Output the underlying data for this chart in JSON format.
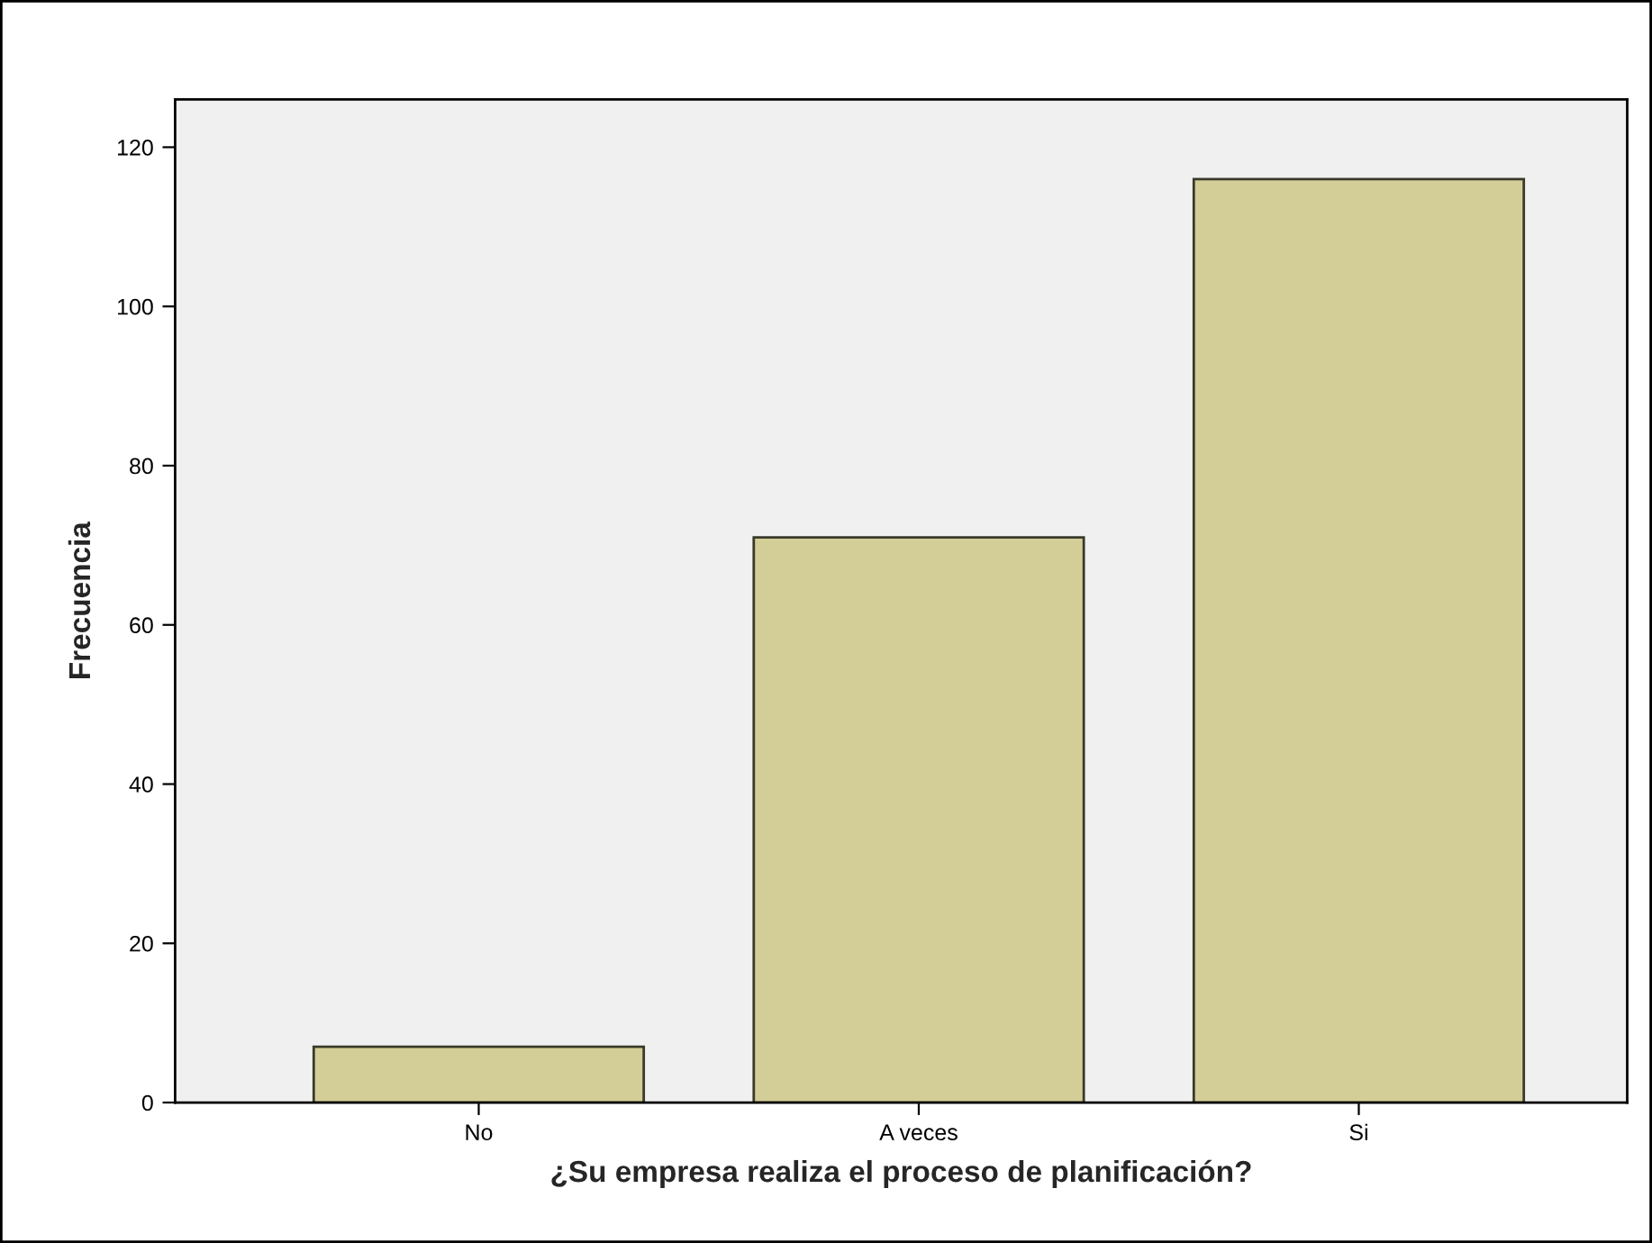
{
  "chart_data": {
    "type": "bar",
    "xlabel": "¿Su empresa realiza el proceso de planificación?",
    "ylabel": "Frecuencia",
    "categories": [
      "No",
      "A veces",
      "Si"
    ],
    "values": [
      7,
      71,
      116
    ],
    "color": "#d3ce97",
    "ylim": [
      0,
      126
    ],
    "yticks": [
      0,
      20,
      40,
      60,
      80,
      100,
      120
    ],
    "grid": false
  }
}
